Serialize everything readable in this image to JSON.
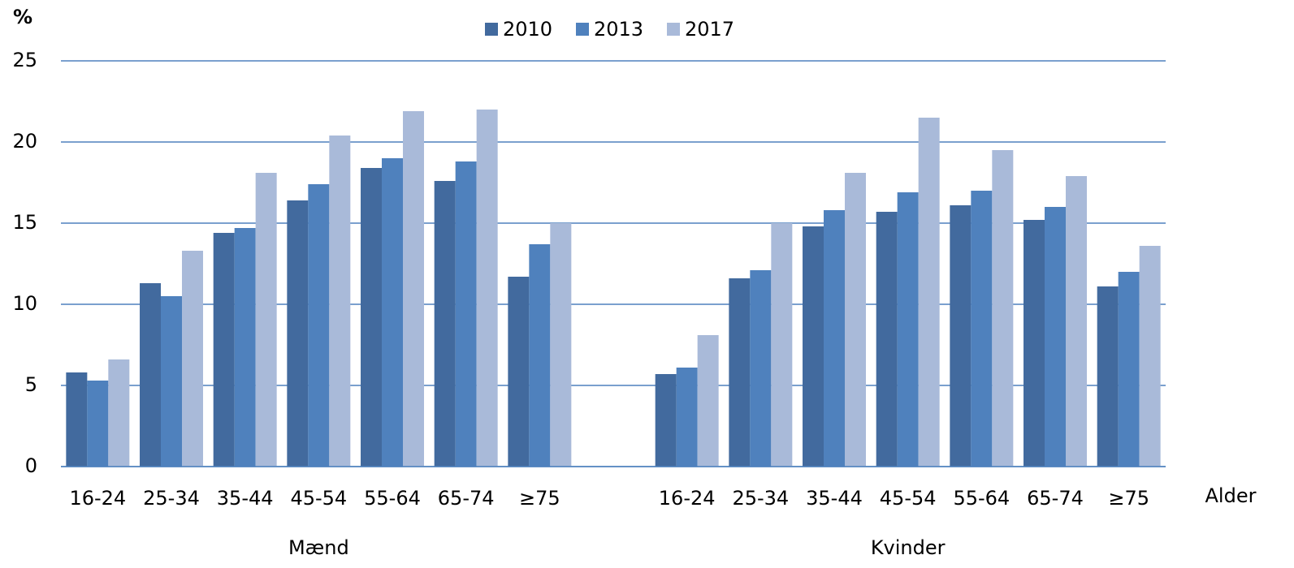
{
  "chart_data": {
    "type": "bar",
    "y_label": "%",
    "x_label": "Alder",
    "categories": [
      "16-24",
      "25-34",
      "35-44",
      "45-54",
      "55-64",
      "65-74",
      "≥75",
      null,
      "16-24",
      "25-34",
      "35-44",
      "45-54",
      "55-64",
      "65-74",
      "≥75"
    ],
    "groups": [
      "Mænd",
      "Kvinder"
    ],
    "series": [
      {
        "name": "2010",
        "color": "#426a9e",
        "values": [
          5.8,
          11.3,
          14.4,
          16.4,
          18.4,
          17.6,
          11.7,
          null,
          5.7,
          11.6,
          14.8,
          15.7,
          16.1,
          15.2,
          11.1
        ]
      },
      {
        "name": "2013",
        "color": "#4f81bd",
        "values": [
          5.3,
          10.5,
          14.7,
          17.4,
          19.0,
          18.8,
          13.7,
          null,
          6.1,
          12.1,
          15.8,
          16.9,
          17.0,
          16.0,
          12.0
        ]
      },
      {
        "name": "2017",
        "color": "#a9bad9",
        "values": [
          6.6,
          13.3,
          18.1,
          20.4,
          21.9,
          22.0,
          15.0,
          null,
          8.1,
          15.0,
          18.1,
          21.5,
          19.5,
          17.9,
          13.6
        ]
      }
    ],
    "ylim": [
      0,
      25
    ],
    "yticks": [
      0,
      5,
      10,
      15,
      20,
      25
    ],
    "grid": true,
    "legend": "top"
  }
}
